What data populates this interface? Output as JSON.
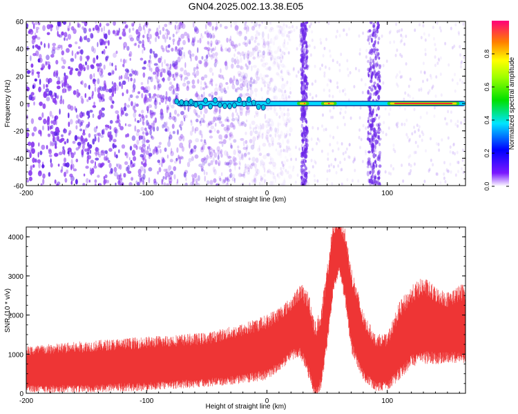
{
  "title": "GN04.2025.002.13.38.E05",
  "colors": {
    "spectrogram_scatter": "#7a2be0",
    "snr_series": "#ee3535"
  },
  "chart_data": [
    {
      "type": "heatmap",
      "name": "spectrogram",
      "xlabel": "Height of straight line (km)",
      "ylabel": "Frequency (Hz)",
      "xlim": [
        -200,
        165
      ],
      "ylim": [
        -60,
        60
      ],
      "x_ticks": [
        "-200",
        "-100",
        "0",
        "100"
      ],
      "y_ticks": [
        "-60",
        "-40",
        "-20",
        "0",
        "20",
        "40",
        "60"
      ],
      "colorbar": {
        "label": "Normalized spectral amplitude",
        "range": [
          0.0,
          1.0
        ],
        "ticks": [
          "0.0",
          "0.2",
          "0.4",
          "0.6",
          "0.8"
        ]
      },
      "features": {
        "noise_region_x": [
          -200,
          10
        ],
        "vertical_bands_x": [
          31,
          89
        ],
        "carrier_line_freq": 0,
        "carrier_line_x": [
          -75,
          165
        ],
        "carrier_strong_segments_x": [
          [
            25,
            35
          ],
          [
            45,
            58
          ],
          [
            100,
            160
          ]
        ]
      }
    },
    {
      "type": "line",
      "name": "snr",
      "xlabel": "Height of straight line (km)",
      "ylabel": "SNR (10 * v/v)",
      "xlim": [
        -200,
        165
      ],
      "ylim": [
        0,
        4250
      ],
      "x_ticks": [
        "-200",
        "-100",
        "0",
        "100"
      ],
      "y_ticks": [
        "0",
        "1000",
        "2000",
        "3000",
        "4000"
      ],
      "envelope": {
        "x": [
          -200,
          -150,
          -100,
          -50,
          -20,
          0,
          10,
          20,
          28,
          35,
          40,
          45,
          50,
          55,
          60,
          65,
          70,
          80,
          90,
          100,
          110,
          120,
          130,
          140,
          150,
          165
        ],
        "lower": [
          200,
          220,
          280,
          380,
          480,
          600,
          800,
          1100,
          1200,
          700,
          100,
          400,
          1500,
          2800,
          3300,
          2600,
          1400,
          600,
          280,
          300,
          650,
          1000,
          1100,
          1050,
          1050,
          1100
        ],
        "upper": [
          950,
          1050,
          1150,
          1250,
          1450,
          1650,
          1850,
          2100,
          2400,
          2100,
          1400,
          1700,
          2800,
          4000,
          4250,
          3800,
          2800,
          1700,
          1200,
          1200,
          1900,
          2300,
          2500,
          2300,
          2200,
          2400
        ]
      }
    }
  ]
}
